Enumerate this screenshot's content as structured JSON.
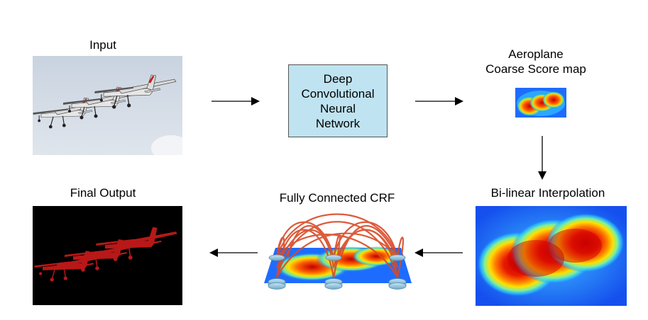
{
  "labels": {
    "input": "Input",
    "score_map_line1": "Aeroplane",
    "score_map_line2": "Coarse Score map",
    "interpolation": "Bi-linear Interpolation",
    "crf": "Fully Connected CRF",
    "final_output": "Final Output"
  },
  "dcnn": {
    "line1": "Deep",
    "line2": "Convolutional",
    "line3": "Neural",
    "line4": "Network"
  },
  "colors": {
    "dcnn_fill": "#bfe3f0",
    "plane_mask": "#c01818",
    "crf_edges": "#d94a26",
    "heat_low": "#1e73ff",
    "heat_high": "#c80000"
  },
  "icons": {
    "input_image": "airplanes-photo",
    "coarse_map": "heatmap-icon",
    "interp_map": "heatmap-icon",
    "crf_graph": "crf-graph-icon",
    "output_mask": "segmentation-mask-icon"
  }
}
